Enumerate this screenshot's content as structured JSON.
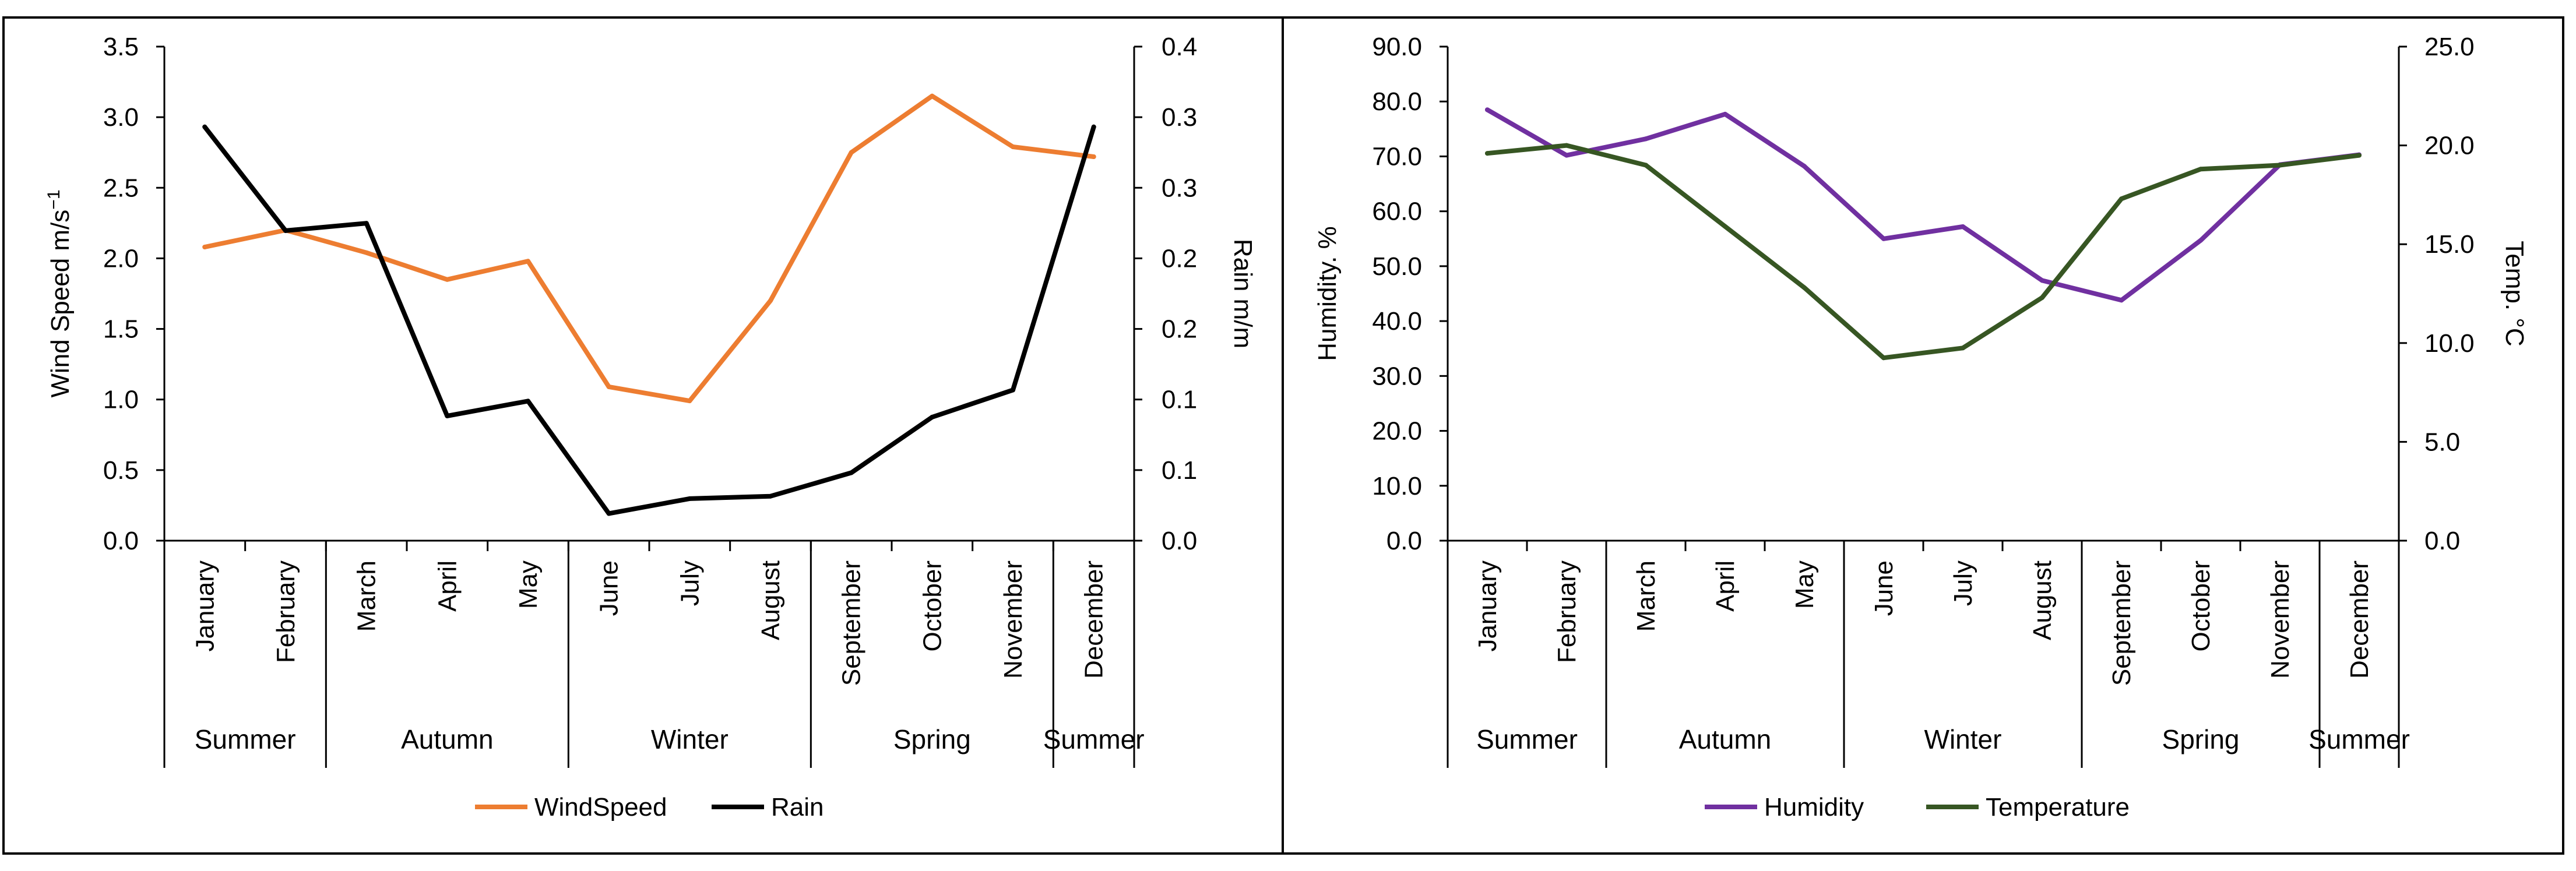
{
  "chart_data": [
    {
      "type": "line",
      "categories": [
        "January",
        "February",
        "March",
        "April",
        "May",
        "June",
        "July",
        "August",
        "September",
        "October",
        "November",
        "December"
      ],
      "season_groups": [
        {
          "label": "Summer",
          "months": [
            "January",
            "February"
          ]
        },
        {
          "label": "Autumn",
          "months": [
            "March",
            "April",
            "May"
          ]
        },
        {
          "label": "Winter",
          "months": [
            "June",
            "July",
            "August"
          ]
        },
        {
          "label": "Spring",
          "months": [
            "September",
            "October",
            "November"
          ]
        },
        {
          "label": "Summer",
          "months": [
            "December"
          ]
        }
      ],
      "ylabel": "Wind Speed m/s",
      "ylabel_sup": "−1",
      "ylim": [
        0,
        3.5
      ],
      "y_ticks": [
        "0.0",
        "0.5",
        "1.0",
        "1.5",
        "2.0",
        "2.5",
        "3.0",
        "3.5"
      ],
      "y2label": "Rain m/m",
      "y2lim": [
        0,
        0.4
      ],
      "y2_ticks": [
        "0.0",
        "0.1",
        "0.1",
        "0.2",
        "0.2",
        "0.3",
        "0.3",
        "0.4"
      ],
      "series": [
        {
          "name": "WindSpeed",
          "axis": "left",
          "color": "#ED7D31",
          "values": [
            2.08,
            2.2,
            2.04,
            1.85,
            1.98,
            1.09,
            0.99,
            1.7,
            2.75,
            3.15,
            2.79,
            2.72
          ]
        },
        {
          "name": "Rain",
          "axis": "right",
          "color": "#000000",
          "values": [
            0.335,
            0.251,
            0.257,
            0.101,
            0.113,
            0.022,
            0.034,
            0.036,
            0.055,
            0.1,
            0.122,
            0.335
          ]
        }
      ],
      "legend_position": "bottom"
    },
    {
      "type": "line",
      "categories": [
        "January",
        "February",
        "March",
        "April",
        "May",
        "June",
        "July",
        "August",
        "September",
        "October",
        "November",
        "December"
      ],
      "season_groups": [
        {
          "label": "Summer",
          "months": [
            "January",
            "February"
          ]
        },
        {
          "label": "Autumn",
          "months": [
            "March",
            "April",
            "May"
          ]
        },
        {
          "label": "Winter",
          "months": [
            "June",
            "July",
            "August"
          ]
        },
        {
          "label": "Spring",
          "months": [
            "September",
            "October",
            "November"
          ]
        },
        {
          "label": "Summer",
          "months": [
            "December"
          ]
        }
      ],
      "ylabel": "Humidity. %",
      "ylim": [
        0,
        90
      ],
      "y_ticks": [
        "0.0",
        "10.0",
        "20.0",
        "30.0",
        "40.0",
        "50.0",
        "60.0",
        "70.0",
        "80.0",
        "90.0"
      ],
      "y2label": "Temp. °C",
      "y2lim": [
        0,
        25
      ],
      "y2_ticks": [
        "0.0",
        "5.0",
        "10.0",
        "15.0",
        "20.0",
        "25.0"
      ],
      "series": [
        {
          "name": "Humidity",
          "axis": "left",
          "color": "#7030A0",
          "values": [
            78.5,
            70.2,
            73.2,
            77.7,
            68.2,
            55.0,
            57.2,
            47.4,
            43.8,
            54.7,
            68.5,
            70.3
          ]
        },
        {
          "name": "Temperature",
          "axis": "right",
          "color": "#375623",
          "values": [
            19.6,
            20.0,
            19.0,
            15.9,
            12.8,
            9.25,
            9.75,
            12.3,
            17.3,
            18.8,
            19.0,
            19.5
          ]
        }
      ],
      "legend_position": "bottom"
    }
  ]
}
